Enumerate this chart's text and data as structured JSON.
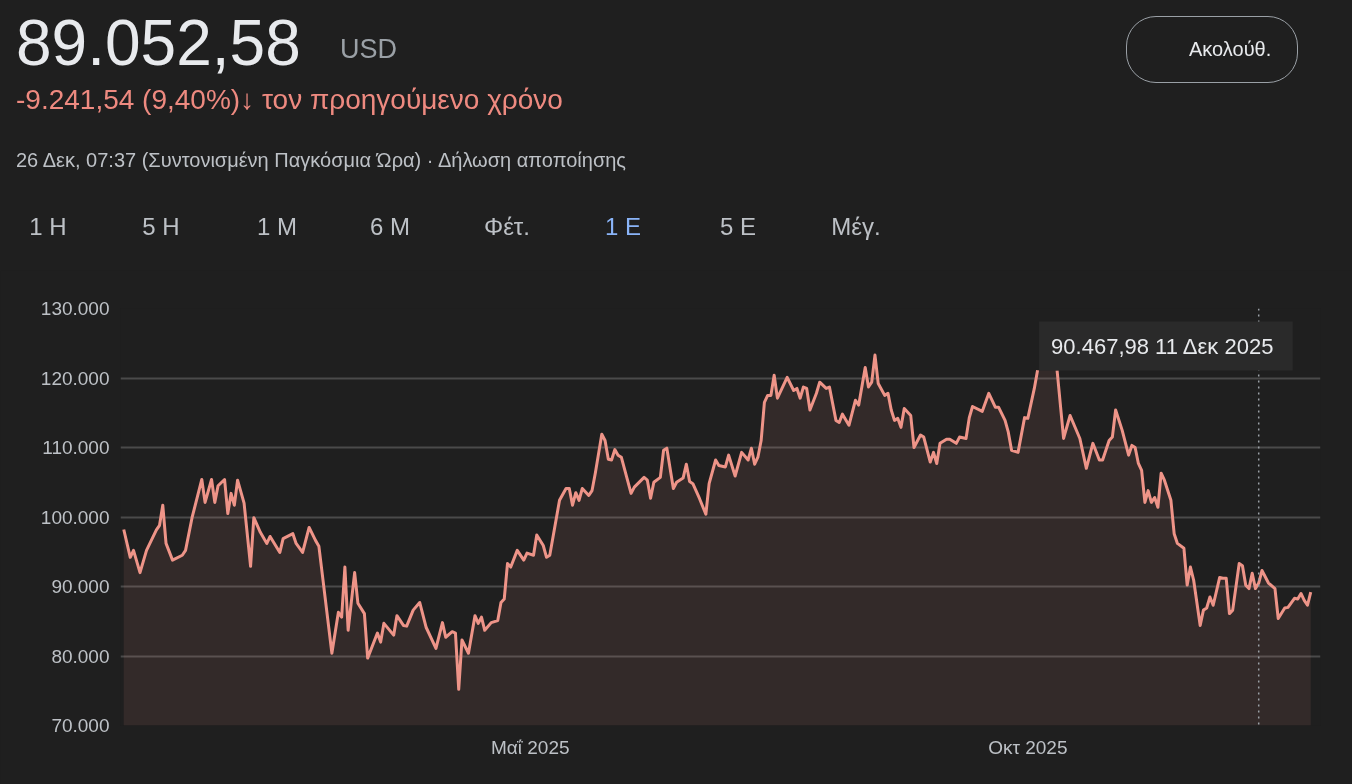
{
  "chart_data": {
    "type": "area",
    "title": "89.052,58",
    "subtitle": "-9.241,54 (9,40%)↓ τον προηγούμενο χρόνο",
    "annotations": [
      "USD",
      "26 Δεκ, 07:37 (Συντονισμένη Παγκόσμια Ώρα) · Δήλωση αποποίησης",
      "Ακολούθ.",
      "1 Η",
      "5 Η",
      "1 Μ",
      "6 Μ",
      "Φέτ.",
      "1 Ε",
      "5 Ε",
      "Μέγ.",
      "90.467,98  11 Δεκ 2025"
    ],
    "x": [
      "2024-12-27",
      "2024-12-29",
      "2024-12-30",
      "2025-01-01",
      "2025-01-03",
      "2025-01-06",
      "2025-01-07",
      "2025-01-08",
      "2025-01-09",
      "2025-01-11",
      "2025-01-14",
      "2025-01-15",
      "2025-01-17",
      "2025-01-20",
      "2025-01-21",
      "2025-01-23",
      "2025-01-24",
      "2025-01-25",
      "2025-01-27",
      "2025-01-28",
      "2025-01-29",
      "2025-01-30",
      "2025-01-31",
      "2025-02-02",
      "2025-02-04",
      "2025-02-05",
      "2025-02-07",
      "2025-02-09",
      "2025-02-10",
      "2025-02-13",
      "2025-02-14",
      "2025-02-17",
      "2025-02-18",
      "2025-02-20",
      "2025-02-22",
      "2025-02-24",
      "2025-02-25",
      "2025-03-01",
      "2025-03-03",
      "2025-03-04",
      "2025-03-05",
      "2025-03-06",
      "2025-03-08",
      "2025-03-09",
      "2025-03-11",
      "2025-03-12",
      "2025-03-15",
      "2025-03-16",
      "2025-03-17",
      "2025-03-20",
      "2025-03-21",
      "2025-03-23",
      "2025-03-24",
      "2025-03-26",
      "2025-03-28",
      "2025-03-30",
      "2025-04-02",
      "2025-04-04",
      "2025-04-05",
      "2025-04-07",
      "2025-04-08",
      "2025-04-09",
      "2025-04-10",
      "2025-04-12",
      "2025-04-14",
      "2025-04-15",
      "2025-04-16",
      "2025-04-17",
      "2025-04-19",
      "2025-04-21",
      "2025-04-22",
      "2025-04-23",
      "2025-04-24",
      "2025-04-25",
      "2025-04-27",
      "2025-04-29",
      "2025-04-30",
      "2025-05-02",
      "2025-05-03",
      "2025-05-05",
      "2025-05-06",
      "2025-05-07",
      "2025-05-10",
      "2025-05-12",
      "2025-05-13",
      "2025-05-14",
      "2025-05-15",
      "2025-05-16",
      "2025-05-17",
      "2025-05-19",
      "2025-05-20",
      "2025-05-21",
      "2025-05-23",
      "2025-05-24",
      "2025-05-25",
      "2025-05-26",
      "2025-05-27",
      "2025-05-28",
      "2025-05-29",
      "2025-06-01",
      "2025-06-02",
      "2025-06-05",
      "2025-06-06",
      "2025-06-07",
      "2025-06-08",
      "2025-06-10",
      "2025-06-11",
      "2025-06-12",
      "2025-06-14",
      "2025-06-15",
      "2025-06-17",
      "2025-06-18",
      "2025-06-19",
      "2025-06-20",
      "2025-06-22",
      "2025-06-24",
      "2025-06-25",
      "2025-06-27",
      "2025-06-28",
      "2025-06-30",
      "2025-07-01",
      "2025-07-03",
      "2025-07-05",
      "2025-07-07",
      "2025-07-08",
      "2025-07-09",
      "2025-07-10",
      "2025-07-11",
      "2025-07-12",
      "2025-07-13",
      "2025-07-14",
      "2025-07-15",
      "2025-07-16",
      "2025-07-19",
      "2025-07-21",
      "2025-07-22",
      "2025-07-23",
      "2025-07-24",
      "2025-07-25",
      "2025-07-26",
      "2025-07-28",
      "2025-07-29",
      "2025-07-31",
      "2025-08-01",
      "2025-08-03",
      "2025-08-04",
      "2025-08-05",
      "2025-08-07",
      "2025-08-09",
      "2025-08-10",
      "2025-08-12",
      "2025-08-13",
      "2025-08-14",
      "2025-08-15",
      "2025-08-16",
      "2025-08-18",
      "2025-08-19",
      "2025-08-20",
      "2025-08-21",
      "2025-08-22",
      "2025-08-23",
      "2025-08-24",
      "2025-08-26",
      "2025-08-27",
      "2025-08-29",
      "2025-08-30",
      "2025-09-01",
      "2025-09-02",
      "2025-09-03",
      "2025-09-04",
      "2025-09-06",
      "2025-09-07",
      "2025-09-09",
      "2025-09-10",
      "2025-09-12",
      "2025-09-13",
      "2025-09-14",
      "2025-09-17",
      "2025-09-19",
      "2025-09-21",
      "2025-09-22",
      "2025-09-24",
      "2025-09-25",
      "2025-09-26",
      "2025-09-28",
      "2025-09-30",
      "2025-10-01",
      "2025-10-03",
      "2025-10-04",
      "2025-10-07",
      "2025-10-10",
      "2025-10-12",
      "2025-10-14",
      "2025-10-17",
      "2025-10-19",
      "2025-10-21",
      "2025-10-23",
      "2025-10-24",
      "2025-10-26",
      "2025-10-27",
      "2025-10-28",
      "2025-10-30",
      "2025-11-01",
      "2025-11-02",
      "2025-11-03",
      "2025-11-04",
      "2025-11-05",
      "2025-11-06",
      "2025-11-07",
      "2025-11-08",
      "2025-11-09",
      "2025-11-10",
      "2025-11-11",
      "2025-11-12",
      "2025-11-14",
      "2025-11-15",
      "2025-11-16",
      "2025-11-18",
      "2025-11-19",
      "2025-11-20",
      "2025-11-21",
      "2025-11-23",
      "2025-11-24",
      "2025-11-25",
      "2025-11-26",
      "2025-11-27",
      "2025-11-29",
      "2025-11-30",
      "2025-12-01",
      "2025-12-02",
      "2025-12-03",
      "2025-12-05",
      "2025-12-06",
      "2025-12-07",
      "2025-12-08",
      "2025-12-09",
      "2025-12-10",
      "2025-12-11",
      "2025-12-12",
      "2025-12-14",
      "2025-12-16",
      "2025-12-17",
      "2025-12-19",
      "2025-12-20",
      "2025-12-22",
      "2025-12-23",
      "2025-12-24",
      "2025-12-25",
      "2025-12-26",
      "2025-12-27"
    ],
    "values": [
      98200,
      94200,
      95200,
      92000,
      95200,
      98100,
      98800,
      101700,
      96200,
      93800,
      94500,
      95200,
      99900,
      105400,
      102100,
      105400,
      102100,
      104500,
      105400,
      100500,
      103400,
      101700,
      105300,
      102000,
      92900,
      99900,
      97800,
      96200,
      97200,
      94900,
      96900,
      97600,
      96200,
      94900,
      98500,
      96600,
      95800,
      80400,
      86300,
      85600,
      92800,
      83700,
      92000,
      87600,
      86100,
      79700,
      83300,
      82000,
      84700,
      83000,
      85800,
      84400,
      84300,
      86600,
      87700,
      84100,
      81100,
      84800,
      82700,
      83500,
      83300,
      75200,
      82300,
      80400,
      85800,
      84700,
      85600,
      83700,
      84800,
      85100,
      87700,
      88200,
      93300,
      92800,
      95200,
      93800,
      94800,
      94500,
      97400,
      95900,
      94200,
      94500,
      102400,
      104100,
      104100,
      101700,
      103500,
      102400,
      104100,
      103100,
      103800,
      106300,
      111900,
      111000,
      108300,
      108200,
      109700,
      108900,
      108600,
      103400,
      104300,
      105700,
      105300,
      102700,
      105000,
      105700,
      109600,
      109900,
      104100,
      105000,
      105600,
      107600,
      105100,
      104800,
      102700,
      100400,
      104800,
      108200,
      107400,
      107200,
      108900,
      105900,
      109300,
      108200,
      109900,
      107600,
      108600,
      111000,
      116500,
      117500,
      117500,
      120400,
      117100,
      120100,
      118200,
      118500,
      117100,
      118700,
      118500,
      115400,
      117800,
      119400,
      118500,
      118700,
      113900,
      113600,
      114800,
      113200,
      116800,
      116100,
      121500,
      118700,
      119400,
      123300,
      119200,
      117500,
      117800,
      115400,
      113900,
      114200,
      112900,
      115600,
      114600,
      110000,
      111800,
      111500,
      107900,
      109300,
      107700,
      110600,
      111200,
      111200,
      110600,
      111500,
      111300,
      114300,
      115900,
      115200,
      117800,
      115800,
      115800,
      113900,
      112200,
      109600,
      109300,
      114300,
      114200,
      118500,
      121100,
      null,
      121100,
      111300,
      114600,
      111300,
      107000,
      110600,
      108200,
      108200,
      111000,
      111500,
      115400,
      112500,
      108900,
      110300,
      110000,
      107700,
      106700,
      102100,
      103800,
      102100,
      102800,
      101400,
      106300,
      105300,
      102400,
      97600,
      96200,
      95500,
      90200,
      92800,
      90900,
      84400,
      86600,
      86900,
      88500,
      87300,
      91300,
      91200,
      91200,
      86100,
      86600,
      93300,
      93000,
      90200,
      89700,
      91900,
      89700,
      90500,
      92300,
      90500,
      89700,
      85400,
      86900,
      87000,
      88300,
      88200,
      89000,
      88000,
      87300,
      89200
    ],
    "color": "#ee9488",
    "xlim": [
      "2024-12-26",
      "2025-12-30"
    ],
    "xticks": [
      {
        "value": "2025-05-01",
        "label": "Μαΐ 2025"
      },
      {
        "value": "2025-10-01",
        "label": "Οκτ 2025"
      }
    ],
    "ylim": [
      70000,
      130000
    ],
    "yticks": [
      {
        "value": 70000,
        "label": "70.000"
      },
      {
        "value": 80000,
        "label": "80.000"
      },
      {
        "value": 90000,
        "label": "90.000"
      },
      {
        "value": 100000,
        "label": "100.000"
      },
      {
        "value": 110000,
        "label": "110.000"
      },
      {
        "value": 120000,
        "label": "120.000"
      },
      {
        "value": 130000,
        "label": "130.000"
      }
    ],
    "grid": "y",
    "ref_lines": [
      {
        "axis": "x",
        "value": "2025-12-11",
        "label": null,
        "color": "#9aa0a6",
        "line_style": "dotted"
      }
    ]
  }
}
